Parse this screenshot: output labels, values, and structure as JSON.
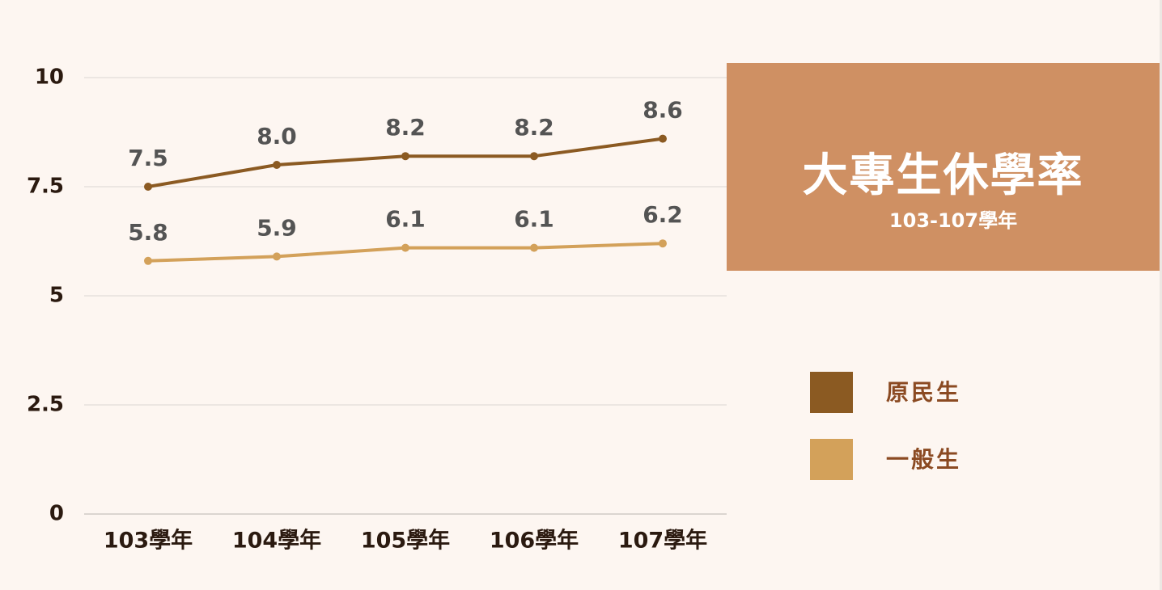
{
  "title": "大專生休學率",
  "subtitle": "103-107學年",
  "chart_data": {
    "type": "line",
    "title": "大專生休學率",
    "subtitle": "103-107學年",
    "categories": [
      "103學年",
      "104學年",
      "105學年",
      "106學年",
      "107學年"
    ],
    "series": [
      {
        "name": "原民生",
        "values": [
          7.5,
          8.0,
          8.2,
          8.2,
          8.6
        ],
        "labels": [
          "7.5",
          "8.0",
          "8.2",
          "8.2",
          "8.6"
        ],
        "color": "#8b5a22"
      },
      {
        "name": "一般生",
        "values": [
          5.8,
          5.9,
          6.1,
          6.1,
          6.2
        ],
        "labels": [
          "5.8",
          "5.9",
          "6.1",
          "6.1",
          "6.2"
        ],
        "color": "#d3a15a"
      }
    ],
    "yticks": [
      0,
      2.5,
      5,
      7.5,
      10
    ],
    "ytick_labels": [
      "0",
      "2.5",
      "5",
      "7.5",
      "10"
    ],
    "ylim": [
      0,
      10
    ],
    "xlabel": "",
    "ylabel": "",
    "grid": true,
    "legend_position": "right"
  },
  "legend": [
    {
      "label": "原民生",
      "color": "#8b5a22"
    },
    {
      "label": "一般生",
      "color": "#d3a15a"
    }
  ],
  "colors": {
    "background": "#fdf6f1",
    "panel": "#cf9063",
    "legend_text": "#8b4a22",
    "axis_text": "#2b1a10",
    "data_label_text": "#545454",
    "gridline": "#dcd6d2"
  }
}
